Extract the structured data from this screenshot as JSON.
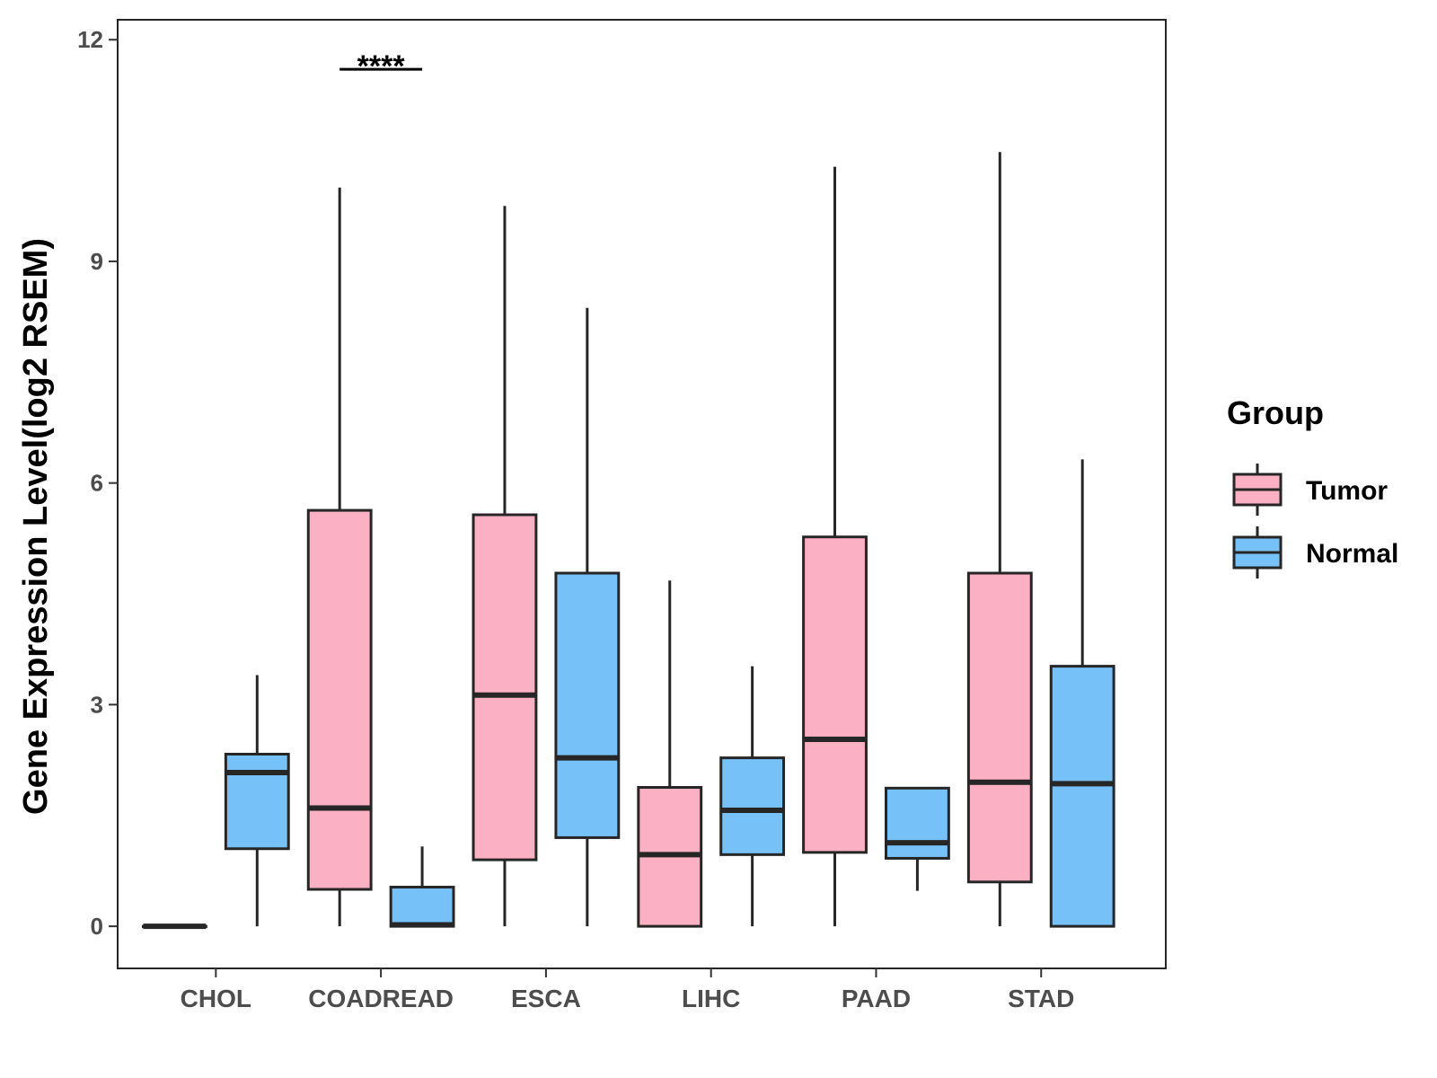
{
  "chart_data": {
    "type": "box",
    "title": "",
    "xlabel": "",
    "ylabel": "Gene Expression Level(log2 RSEM)",
    "ylim": [
      -0.57,
      12.27
    ],
    "yticks": [
      0,
      3,
      6,
      9,
      12
    ],
    "categories": [
      "CHOL",
      "COADREAD",
      "ESCA",
      "LIHC",
      "PAAD",
      "STAD"
    ],
    "legend": {
      "title": "Group",
      "position": "right"
    },
    "series": [
      {
        "name": "Tumor",
        "color": "#FCB0C3",
        "boxes": [
          {
            "category": "CHOL",
            "min": 0,
            "q1": 0,
            "median": 0,
            "q3": 0,
            "max": 0
          },
          {
            "category": "COADREAD",
            "min": 0,
            "q1": 0.5,
            "median": 1.6,
            "q3": 5.63,
            "max": 10.0
          },
          {
            "category": "ESCA",
            "min": 0,
            "q1": 0.9,
            "median": 3.13,
            "q3": 5.57,
            "max": 9.75
          },
          {
            "category": "LIHC",
            "min": 0,
            "q1": 0,
            "median": 0.97,
            "q3": 1.88,
            "max": 4.68
          },
          {
            "category": "PAAD",
            "min": 0,
            "q1": 1.0,
            "median": 2.53,
            "q3": 5.27,
            "max": 10.28
          },
          {
            "category": "STAD",
            "min": 0,
            "q1": 0.6,
            "median": 1.95,
            "q3": 4.78,
            "max": 10.48
          }
        ]
      },
      {
        "name": "Normal",
        "color": "#77C1F9",
        "boxes": [
          {
            "category": "CHOL",
            "min": 0,
            "q1": 1.05,
            "median": 2.08,
            "q3": 2.33,
            "max": 3.4
          },
          {
            "category": "COADREAD",
            "min": 0,
            "q1": 0,
            "median": 0.02,
            "q3": 0.53,
            "max": 1.08
          },
          {
            "category": "ESCA",
            "min": 0,
            "q1": 1.2,
            "median": 2.28,
            "q3": 4.78,
            "max": 8.37
          },
          {
            "category": "LIHC",
            "min": 0,
            "q1": 0.97,
            "median": 1.57,
            "q3": 2.28,
            "max": 3.52
          },
          {
            "category": "PAAD",
            "min": 0.48,
            "q1": 0.92,
            "median": 1.13,
            "q3": 1.87,
            "max": 1.87
          },
          {
            "category": "STAD",
            "min": 0,
            "q1": 0,
            "median": 1.93,
            "q3": 3.52,
            "max": 6.32
          }
        ]
      }
    ],
    "annotations": [
      {
        "category": "COADREAD",
        "text": "****",
        "y": 11.6
      }
    ]
  }
}
